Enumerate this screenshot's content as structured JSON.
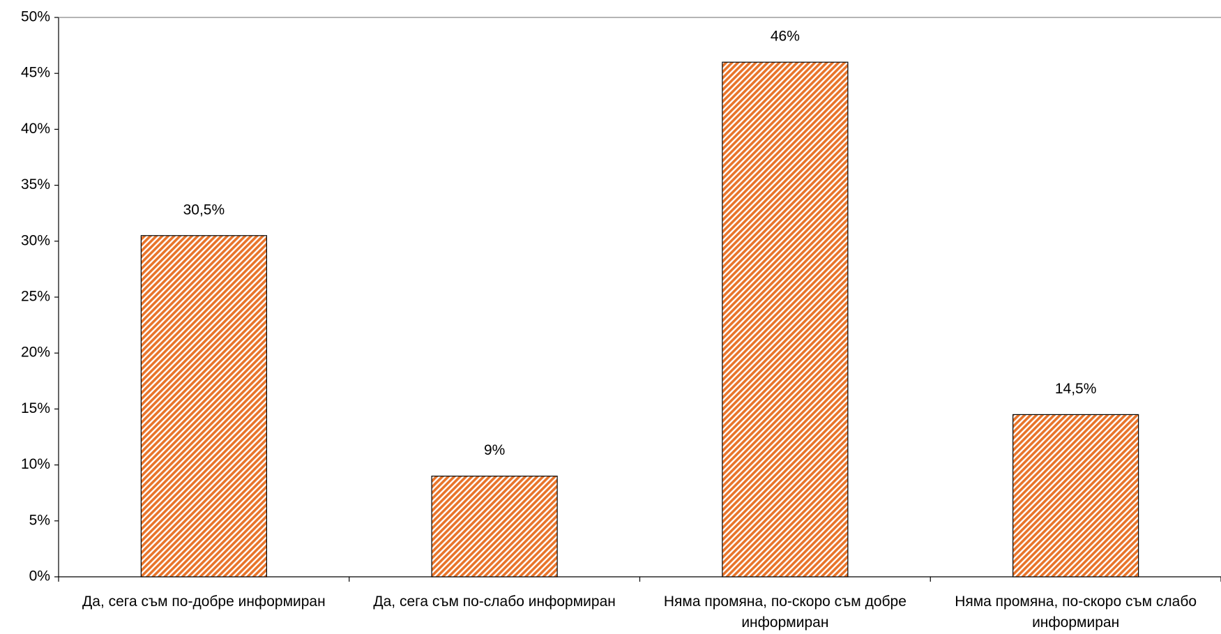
{
  "chart_data": {
    "type": "bar",
    "categories": [
      "Да, сега съм по-добре информиран",
      "Да, сега съм по-слабо информиран",
      "Няма промяна, по-скоро съм добре информиран",
      "Няма промяна, по-скоро съм слабо информиран"
    ],
    "values": [
      30.5,
      9,
      46,
      14.5
    ],
    "value_labels": [
      "30,5%",
      "9%",
      "46%",
      "14,5%"
    ],
    "color": "#e8742a",
    "ylim": [
      0,
      50
    ],
    "yticks": [
      {
        "value": 0,
        "label": "0%"
      },
      {
        "value": 5,
        "label": "5%"
      },
      {
        "value": 10,
        "label": "10%"
      },
      {
        "value": 15,
        "label": "15%"
      },
      {
        "value": 20,
        "label": "20%"
      },
      {
        "value": 25,
        "label": "25%"
      },
      {
        "value": 30,
        "label": "30%"
      },
      {
        "value": 35,
        "label": "35%"
      },
      {
        "value": 40,
        "label": "40%"
      },
      {
        "value": 45,
        "label": "45%"
      },
      {
        "value": 50,
        "label": "50%"
      }
    ],
    "grid": false
  }
}
